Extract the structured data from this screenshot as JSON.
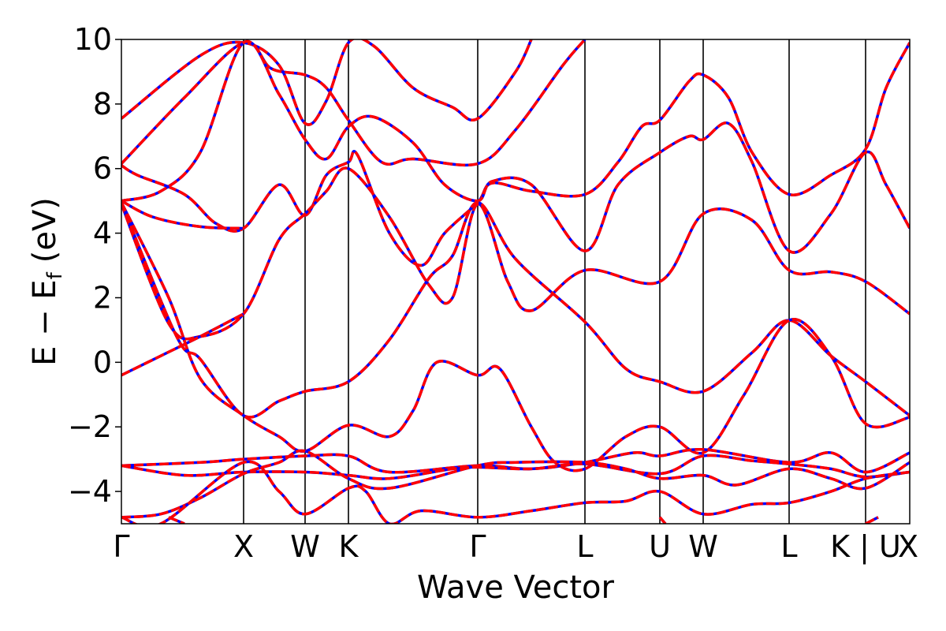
{
  "chart_data": {
    "type": "line",
    "xlabel": "Wave Vector",
    "ylabel": "E − E",
    "ylabel_sub": "f",
    "ylabel_unit": "(eV)",
    "ylim": [
      -5,
      10
    ],
    "yticks": [
      10,
      8,
      6,
      4,
      2,
      0,
      -2,
      -4
    ],
    "ytick_labels": [
      "10",
      "8",
      "6",
      "4",
      "2",
      "0",
      "−2",
      "−4"
    ],
    "xlim": [
      0,
      1
    ],
    "kpoint_labels": [
      "Γ",
      "X",
      "W",
      "K",
      "Γ",
      "L",
      "U",
      "W",
      "L",
      "K | U",
      "X"
    ],
    "kpoint_positions": [
      0,
      0.155,
      0.233,
      0.288,
      0.452,
      0.588,
      0.683,
      0.738,
      0.847,
      0.944,
      1.0
    ],
    "grid": false,
    "legend": "none",
    "colors": {
      "band_solid": "#0000ff",
      "band_dashed": "#ff0000",
      "kpoint_line": "#000000"
    },
    "series": [
      {
        "values": [
          [
            0,
            7.55
          ],
          [
            0.1,
            9.5
          ],
          [
            0.155,
            9.9
          ],
          [
            0.2,
            9.2
          ],
          [
            0.233,
            7.4
          ],
          [
            0.26,
            8.1
          ],
          [
            0.288,
            9.9
          ],
          [
            0.32,
            9.8
          ],
          [
            0.37,
            8.5
          ],
          [
            0.42,
            7.9
          ],
          [
            0.452,
            7.55
          ],
          [
            0.5,
            9.0
          ],
          [
            0.52,
            10.0
          ]
        ]
      },
      {
        "values": [
          [
            0,
            6.15
          ],
          [
            0.08,
            8.2
          ],
          [
            0.155,
            9.9
          ],
          [
            0.19,
            9.1
          ],
          [
            0.233,
            8.9
          ],
          [
            0.26,
            8.5
          ],
          [
            0.288,
            7.5
          ],
          [
            0.33,
            6.2
          ],
          [
            0.37,
            6.3
          ],
          [
            0.452,
            6.15
          ],
          [
            0.5,
            7.2
          ],
          [
            0.56,
            9.2
          ],
          [
            0.588,
            10.0
          ]
        ]
      },
      {
        "values": [
          [
            0,
            6.1
          ],
          [
            0.02,
            5.8
          ],
          [
            0.08,
            5.2
          ],
          [
            0.12,
            4.3
          ],
          [
            0.155,
            4.15
          ],
          [
            0.2,
            5.5
          ],
          [
            0.233,
            4.55
          ],
          [
            0.26,
            5.8
          ],
          [
            0.288,
            6.2
          ],
          [
            0.3,
            6.4
          ],
          [
            0.34,
            4.0
          ],
          [
            0.38,
            3.0
          ],
          [
            0.41,
            4.0
          ],
          [
            0.452,
            4.95
          ],
          [
            0.47,
            5.55
          ],
          [
            0.52,
            5.3
          ],
          [
            0.588,
            5.2
          ],
          [
            0.63,
            6.2
          ],
          [
            0.66,
            7.3
          ],
          [
            0.683,
            7.5
          ],
          [
            0.72,
            8.7
          ],
          [
            0.738,
            8.9
          ],
          [
            0.77,
            8.2
          ],
          [
            0.8,
            6.5
          ],
          [
            0.847,
            5.2
          ],
          [
            0.9,
            5.8
          ],
          [
            0.944,
            6.6
          ],
          [
            0.97,
            8.5
          ],
          [
            1.0,
            9.9
          ]
        ]
      },
      {
        "values": [
          [
            0,
            5.0
          ],
          [
            0.05,
            5.3
          ],
          [
            0.1,
            6.5
          ],
          [
            0.155,
            9.9
          ],
          [
            0.2,
            8.3
          ],
          [
            0.233,
            6.9
          ],
          [
            0.26,
            6.3
          ],
          [
            0.288,
            7.3
          ],
          [
            0.32,
            7.6
          ],
          [
            0.37,
            6.8
          ],
          [
            0.41,
            5.5
          ],
          [
            0.452,
            5.0
          ],
          [
            0.47,
            5.6
          ],
          [
            0.52,
            5.5
          ],
          [
            0.588,
            3.45
          ],
          [
            0.63,
            5.5
          ],
          [
            0.683,
            6.5
          ],
          [
            0.72,
            7.0
          ],
          [
            0.738,
            6.9
          ],
          [
            0.77,
            7.4
          ],
          [
            0.8,
            6.2
          ],
          [
            0.847,
            3.45
          ],
          [
            0.9,
            4.6
          ],
          [
            0.944,
            6.5
          ],
          [
            0.97,
            5.5
          ],
          [
            1.0,
            4.15
          ]
        ]
      },
      {
        "values": [
          [
            0,
            5.0
          ],
          [
            0.04,
            4.5
          ],
          [
            0.1,
            4.2
          ],
          [
            0.155,
            4.15
          ]
        ]
      },
      {
        "values": [
          [
            0,
            4.9
          ],
          [
            0.06,
            1.2
          ],
          [
            0.1,
            0.8
          ],
          [
            0.155,
            1.5
          ],
          [
            0.2,
            3.8
          ],
          [
            0.233,
            4.6
          ],
          [
            0.26,
            5.3
          ],
          [
            0.288,
            6.0
          ],
          [
            0.34,
            4.5
          ],
          [
            0.39,
            2.4
          ],
          [
            0.42,
            2.0
          ],
          [
            0.452,
            4.9
          ],
          [
            0.49,
            2.5
          ],
          [
            0.52,
            1.6
          ],
          [
            0.588,
            2.85
          ],
          [
            0.683,
            2.5
          ],
          [
            0.738,
            4.6
          ],
          [
            0.8,
            4.4
          ],
          [
            0.847,
            2.85
          ],
          [
            0.9,
            2.8
          ],
          [
            0.944,
            2.5
          ],
          [
            1.0,
            1.5
          ]
        ]
      },
      {
        "values": [
          [
            0,
            4.95
          ],
          [
            0.07,
            0.8
          ],
          [
            0.1,
            0.1
          ],
          [
            0.155,
            -1.65
          ],
          [
            0.2,
            -1.2
          ],
          [
            0.233,
            -0.9
          ],
          [
            0.288,
            -0.6
          ],
          [
            0.34,
            0.7
          ],
          [
            0.39,
            2.6
          ],
          [
            0.42,
            3.3
          ],
          [
            0.452,
            4.95
          ],
          [
            0.5,
            3.2
          ],
          [
            0.588,
            1.25
          ],
          [
            0.64,
            -0.2
          ],
          [
            0.683,
            -0.6
          ],
          [
            0.738,
            -0.9
          ],
          [
            0.8,
            0.3
          ],
          [
            0.847,
            1.3
          ],
          [
            0.9,
            0.2
          ],
          [
            0.944,
            -0.6
          ],
          [
            1.0,
            -1.65
          ]
        ]
      },
      {
        "values": [
          [
            0,
            -0.4
          ],
          [
            0.05,
            0.2
          ],
          [
            0.1,
            0.8
          ],
          [
            0.155,
            1.5
          ]
        ]
      },
      {
        "values": [
          [
            0,
            4.95
          ],
          [
            0.06,
            2.0
          ],
          [
            0.1,
            -0.5
          ],
          [
            0.155,
            -1.65
          ],
          [
            0.2,
            -2.3
          ],
          [
            0.233,
            -2.75
          ],
          [
            0.288,
            -1.95
          ],
          [
            0.34,
            -2.3
          ],
          [
            0.37,
            -1.5
          ],
          [
            0.4,
            0.0
          ],
          [
            0.452,
            -0.4
          ],
          [
            0.48,
            -0.2
          ],
          [
            0.52,
            -2.0
          ],
          [
            0.55,
            -3.1
          ],
          [
            0.588,
            -3.3
          ],
          [
            0.64,
            -2.3
          ],
          [
            0.683,
            -2.0
          ],
          [
            0.738,
            -2.8
          ],
          [
            0.79,
            -1.0
          ],
          [
            0.847,
            1.3
          ],
          [
            0.9,
            0.2
          ],
          [
            0.944,
            -1.9
          ],
          [
            1.0,
            -1.7
          ]
        ]
      },
      {
        "values": [
          [
            0,
            -3.2
          ],
          [
            0.1,
            -3.1
          ],
          [
            0.155,
            -3.0
          ],
          [
            0.233,
            -2.9
          ],
          [
            0.288,
            -2.9
          ],
          [
            0.34,
            -3.4
          ],
          [
            0.452,
            -3.2
          ],
          [
            0.52,
            -3.3
          ],
          [
            0.588,
            -3.1
          ],
          [
            0.65,
            -2.8
          ],
          [
            0.683,
            -2.9
          ],
          [
            0.738,
            -2.7
          ],
          [
            0.847,
            -3.1
          ],
          [
            0.9,
            -2.8
          ],
          [
            0.944,
            -3.4
          ],
          [
            1.0,
            -2.8
          ]
        ]
      },
      {
        "values": [
          [
            0,
            -3.2
          ],
          [
            0.08,
            -3.5
          ],
          [
            0.155,
            -3.4
          ],
          [
            0.233,
            -3.4
          ],
          [
            0.288,
            -3.5
          ],
          [
            0.34,
            -3.6
          ],
          [
            0.42,
            -3.3
          ],
          [
            0.452,
            -3.25
          ],
          [
            0.52,
            -3.3
          ],
          [
            0.588,
            -3.15
          ],
          [
            0.683,
            -3.45
          ],
          [
            0.738,
            -2.9
          ],
          [
            0.8,
            -3.05
          ],
          [
            0.847,
            -3.15
          ],
          [
            0.9,
            -3.3
          ],
          [
            0.944,
            -3.55
          ],
          [
            1.0,
            -3.4
          ]
        ]
      },
      {
        "values": [
          [
            0,
            -4.8
          ],
          [
            0.05,
            -4.7
          ],
          [
            0.1,
            -4.2
          ],
          [
            0.155,
            -3.45
          ],
          [
            0.2,
            -3.1
          ],
          [
            0.233,
            -2.75
          ],
          [
            0.288,
            -3.6
          ],
          [
            0.34,
            -3.9
          ],
          [
            0.452,
            -3.2
          ],
          [
            0.5,
            -3.1
          ],
          [
            0.588,
            -3.1
          ],
          [
            0.64,
            -3.3
          ],
          [
            0.683,
            -3.6
          ],
          [
            0.738,
            -3.5
          ],
          [
            0.78,
            -3.8
          ],
          [
            0.847,
            -3.3
          ],
          [
            0.9,
            -3.6
          ],
          [
            0.944,
            -3.9
          ],
          [
            1.0,
            -3.1
          ]
        ]
      },
      {
        "values": [
          [
            0,
            -4.8
          ],
          [
            0.05,
            -5.0
          ],
          [
            0.155,
            -3.1
          ],
          [
            0.2,
            -4.0
          ],
          [
            0.233,
            -4.7
          ],
          [
            0.288,
            -3.9
          ],
          [
            0.31,
            -4.0
          ],
          [
            0.34,
            -5.0
          ],
          [
            0.38,
            -4.6
          ],
          [
            0.452,
            -4.8
          ],
          [
            0.52,
            -4.6
          ],
          [
            0.588,
            -4.35
          ],
          [
            0.64,
            -4.3
          ],
          [
            0.683,
            -4.0
          ],
          [
            0.738,
            -4.7
          ],
          [
            0.8,
            -4.4
          ],
          [
            0.847,
            -4.35
          ],
          [
            0.9,
            -4.0
          ],
          [
            0.944,
            -3.6
          ],
          [
            1.0,
            -3.4
          ]
        ]
      },
      {
        "values": [
          [
            0.06,
            -4.8
          ],
          [
            0.08,
            -5.0
          ]
        ]
      },
      {
        "values": [
          [
            0.683,
            -4.8
          ],
          [
            0.69,
            -5.0
          ]
        ]
      },
      {
        "values": [
          [
            0.944,
            -5.0
          ],
          [
            0.96,
            -4.8
          ]
        ]
      }
    ]
  }
}
